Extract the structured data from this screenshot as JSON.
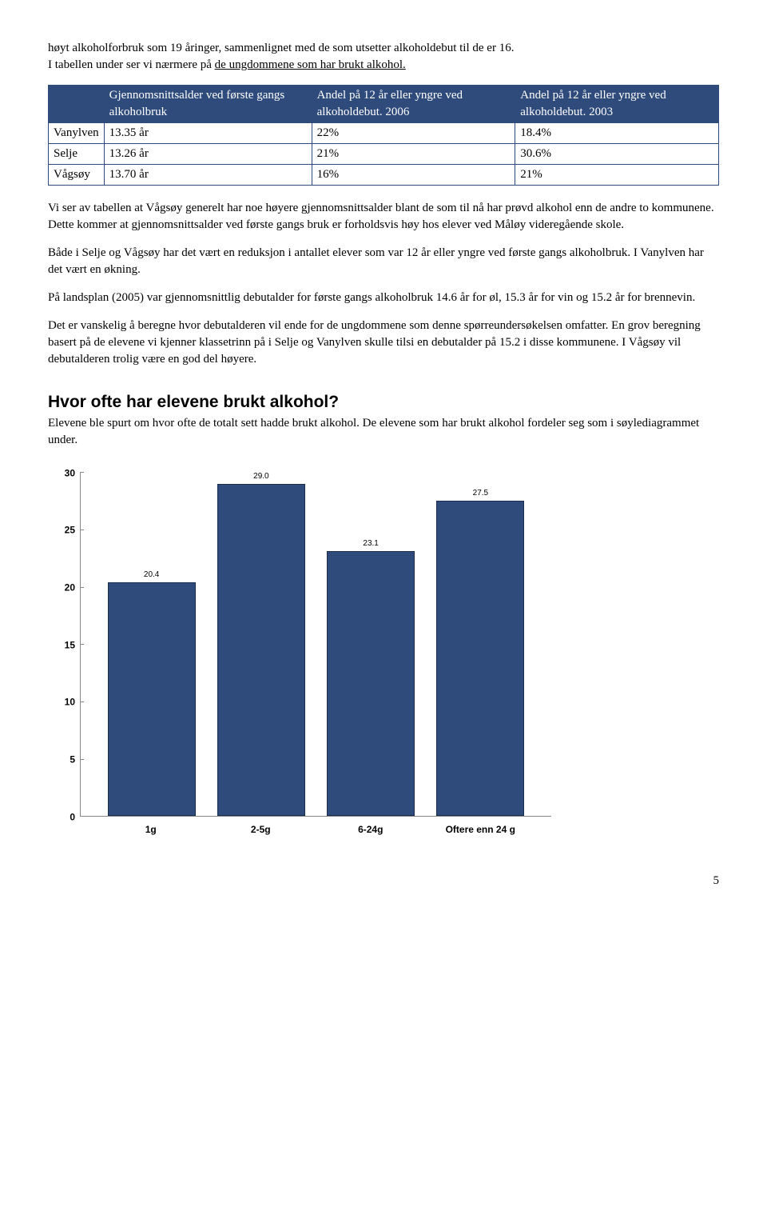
{
  "intro": {
    "p1a": "høyt alkoholforbruk som 19 åringer, sammenlignet med de som utsetter alkoholdebut til de er 16.",
    "p1b_pre": "I tabellen under ser vi nærmere på ",
    "p1b_u": "de ungdommene som har brukt alkohol.",
    "p1b_post": ""
  },
  "table": {
    "headers": {
      "c0": "",
      "c1": "Gjennomsnittsalder ved første gangs alkoholbruk",
      "c2": "Andel på 12 år eller yngre  ved alkoholdebut. 2006",
      "c3": "Andel på 12 år eller yngre  ved alkoholdebut. 2003"
    },
    "rows": [
      {
        "c0": "Vanylven",
        "c1": "13.35 år",
        "c2": "22%",
        "c3": "18.4%"
      },
      {
        "c0": "Selje",
        "c1": "13.26 år",
        "c2": "21%",
        "c3": "30.6%"
      },
      {
        "c0": "Vågsøy",
        "c1": "13.70 år",
        "c2": "16%",
        "c3": "21%"
      }
    ]
  },
  "body": {
    "p2": "Vi ser av tabellen at Vågsøy generelt har noe høyere gjennomsnittsalder blant de som til nå har prøvd alkohol enn de andre to kommunene. Dette kommer at gjennomsnittsalder ved første gangs bruk er forholdsvis høy hos elever ved Måløy videregående skole.",
    "p3": "Både i Selje og Vågsøy har det vært en reduksjon i antallet elever som var 12 år eller yngre ved første gangs alkoholbruk.  I Vanylven har det vært en økning.",
    "p4": "På landsplan (2005) var gjennomsnittlig debutalder for første gangs alkoholbruk 14.6 år for øl, 15.3 år for vin og 15.2 år for brennevin.",
    "p5": "Det er vanskelig å beregne hvor debutalderen vil ende for de ungdommene som denne spørreundersøkelsen omfatter.  En grov beregning basert på de elevene vi kjenner klassetrinn på i Selje og Vanylven skulle tilsi en debutalder på 15.2 i disse kommunene. I Vågsøy vil debutalderen trolig være en god del høyere."
  },
  "section2": {
    "heading": "Hvor ofte har elevene brukt alkohol?",
    "lead": "Elevene ble spurt om hvor ofte de totalt sett hadde brukt alkohol. De elevene som har brukt alkohol fordeler seg som i søylediagrammet under."
  },
  "chart": {
    "type": "bar",
    "categories": [
      "1g",
      "2-5g",
      "6-24g",
      "Oftere enn 24 g"
    ],
    "values": [
      20.4,
      29.0,
      23.1,
      27.5
    ],
    "value_labels": [
      "20.4",
      "29.0",
      "23.1",
      "27.5"
    ],
    "ylim": [
      0,
      30
    ],
    "ytick_step": 5,
    "bar_color": "#2f4b7c",
    "bar_border": "#1a2d4f",
    "axis_color": "#888888",
    "background_color": "#ffffff",
    "value_fontsize": 10,
    "axis_fontsize": 12
  },
  "page_number": "5"
}
